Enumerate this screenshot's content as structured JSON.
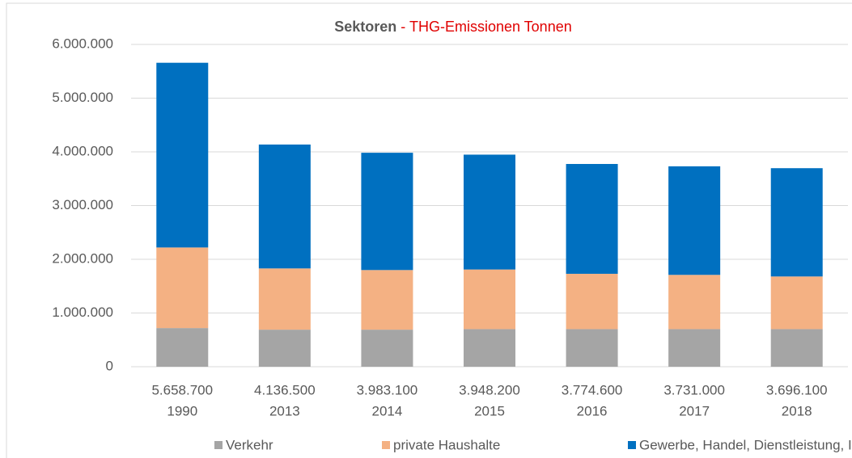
{
  "chart_data": {
    "type": "stacked_bar",
    "title_parts": [
      {
        "text": "Sektoren",
        "color": "#595959"
      },
      {
        "text": "- THG-Emissionen Tonnen",
        "color": "#e00000"
      }
    ],
    "categories": [
      "1990",
      "2013",
      "2014",
      "2015",
      "2016",
      "2017",
      "2018"
    ],
    "totals": {
      "values": [
        5658700,
        4136500,
        3983100,
        3948200,
        3774600,
        3731000,
        3696100
      ],
      "value_labels": [
        "5.658.700",
        "4.136.500",
        "3.983.100",
        "3.948.200",
        "3.774.600",
        "3.731.000",
        "3.696.100"
      ]
    },
    "series": [
      {
        "name": "Verkehr",
        "color": "#a5a5a5",
        "values": [
          720000,
          690000,
          690000,
          700000,
          700000,
          700000,
          700000
        ]
      },
      {
        "name": "private Haushalte",
        "color": "#f4b183",
        "values": [
          1500000,
          1140000,
          1110000,
          1110000,
          1030000,
          1010000,
          980000
        ]
      },
      {
        "name": "Gewerbe, Handel, Dienstleistung, Industrie",
        "color": "#0070c0",
        "values": [
          3438700,
          2306500,
          2183100,
          2138200,
          2044600,
          2021000,
          2016100
        ]
      }
    ],
    "ylim": [
      0,
      6000000
    ],
    "yticks": [
      0,
      {
        "value": 1000000,
        "label": "1.000.000"
      },
      {
        "value": 2000000,
        "label": "2.000.000"
      },
      {
        "value": 3000000,
        "label": "3.000.000"
      },
      {
        "value": 4000000,
        "label": "4.000.000"
      },
      {
        "value": 5000000,
        "label": "5.000.000"
      },
      {
        "value": 6000000,
        "label": "6.000.000"
      }
    ],
    "grid": true,
    "legend": "bottom"
  }
}
